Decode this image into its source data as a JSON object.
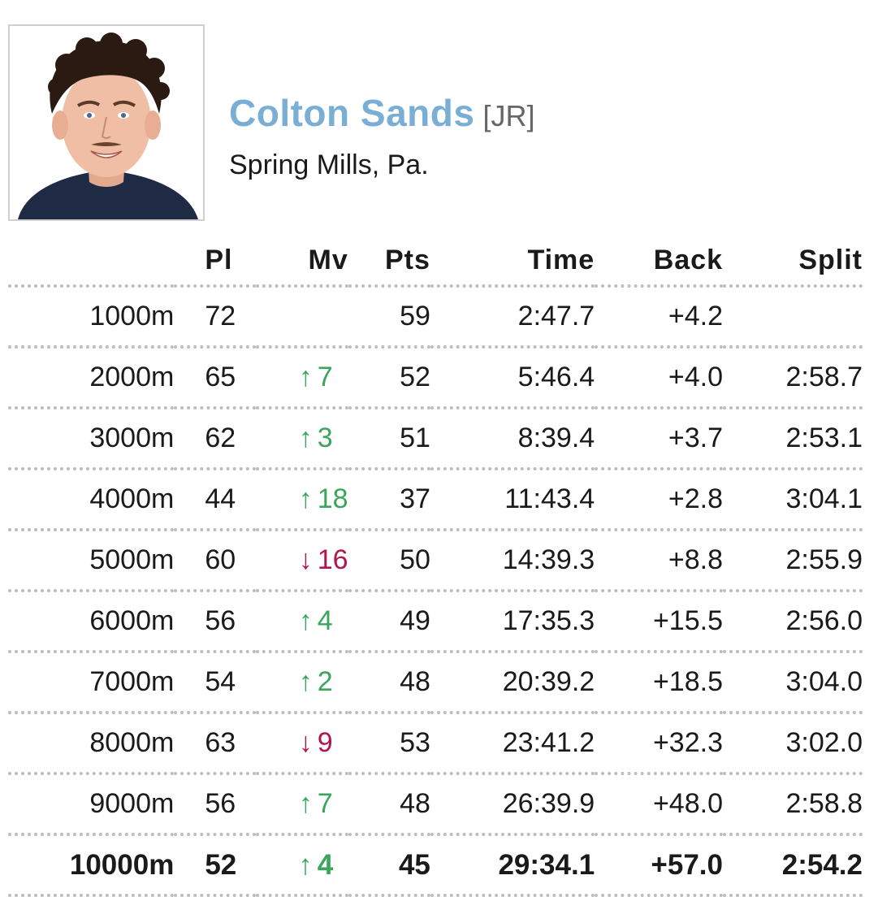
{
  "athlete": {
    "name": "Colton Sands",
    "class_label": "[JR]",
    "hometown": "Spring Mills, Pa."
  },
  "colors": {
    "name": "#7aaed4",
    "up": "#3ba55c",
    "down": "#b0174a"
  },
  "table": {
    "headers": {
      "pl": "Pl",
      "mv": "Mv",
      "pts": "Pts",
      "time": "Time",
      "back": "Back",
      "split": "Split"
    },
    "rows": [
      {
        "distance": "1000m",
        "pl": "72",
        "mv_dir": "",
        "mv": "",
        "pts": "59",
        "time": "2:47.7",
        "back": "+4.2",
        "split": ""
      },
      {
        "distance": "2000m",
        "pl": "65",
        "mv_dir": "up",
        "mv": "7",
        "pts": "52",
        "time": "5:46.4",
        "back": "+4.0",
        "split": "2:58.7"
      },
      {
        "distance": "3000m",
        "pl": "62",
        "mv_dir": "up",
        "mv": "3",
        "pts": "51",
        "time": "8:39.4",
        "back": "+3.7",
        "split": "2:53.1"
      },
      {
        "distance": "4000m",
        "pl": "44",
        "mv_dir": "up",
        "mv": "18",
        "pts": "37",
        "time": "11:43.4",
        "back": "+2.8",
        "split": "3:04.1"
      },
      {
        "distance": "5000m",
        "pl": "60",
        "mv_dir": "down",
        "mv": "16",
        "pts": "50",
        "time": "14:39.3",
        "back": "+8.8",
        "split": "2:55.9"
      },
      {
        "distance": "6000m",
        "pl": "56",
        "mv_dir": "up",
        "mv": "4",
        "pts": "49",
        "time": "17:35.3",
        "back": "+15.5",
        "split": "2:56.0"
      },
      {
        "distance": "7000m",
        "pl": "54",
        "mv_dir": "up",
        "mv": "2",
        "pts": "48",
        "time": "20:39.2",
        "back": "+18.5",
        "split": "3:04.0"
      },
      {
        "distance": "8000m",
        "pl": "63",
        "mv_dir": "down",
        "mv": "9",
        "pts": "53",
        "time": "23:41.2",
        "back": "+32.3",
        "split": "3:02.0"
      },
      {
        "distance": "9000m",
        "pl": "56",
        "mv_dir": "up",
        "mv": "7",
        "pts": "48",
        "time": "26:39.9",
        "back": "+48.0",
        "split": "2:58.8"
      },
      {
        "distance": "10000m",
        "pl": "52",
        "mv_dir": "up",
        "mv": "4",
        "pts": "45",
        "time": "29:34.1",
        "back": "+57.0",
        "split": "2:54.2",
        "final": true
      }
    ]
  }
}
